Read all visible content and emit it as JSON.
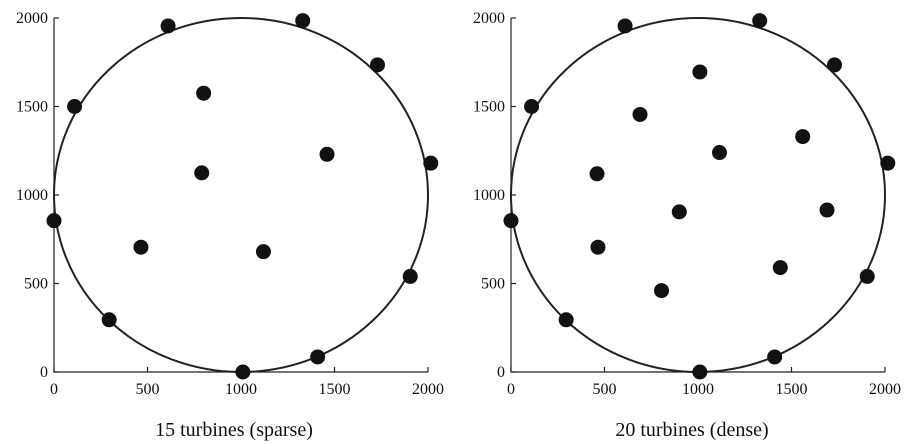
{
  "chart_data": [
    {
      "type": "scatter",
      "caption": "15 turbines (sparse)",
      "xlim": [
        0,
        2000
      ],
      "ylim": [
        0,
        2000
      ],
      "xticks": [
        0,
        500,
        1000,
        1500,
        2000
      ],
      "yticks": [
        0,
        500,
        1000,
        1500,
        2000
      ],
      "grid": false,
      "boundary": {
        "shape": "circle",
        "center": [
          1000,
          1000
        ],
        "radius": 1000
      },
      "points": [
        {
          "x": 610,
          "y": 1955
        },
        {
          "x": 1330,
          "y": 1985
        },
        {
          "x": 1730,
          "y": 1735
        },
        {
          "x": 110,
          "y": 1500
        },
        {
          "x": 2015,
          "y": 1180
        },
        {
          "x": 0,
          "y": 855
        },
        {
          "x": 1905,
          "y": 540
        },
        {
          "x": 295,
          "y": 295
        },
        {
          "x": 1410,
          "y": 85
        },
        {
          "x": 1010,
          "y": 0
        },
        {
          "x": 800,
          "y": 1575
        },
        {
          "x": 1460,
          "y": 1230
        },
        {
          "x": 790,
          "y": 1125
        },
        {
          "x": 465,
          "y": 705
        },
        {
          "x": 1120,
          "y": 680
        }
      ]
    },
    {
      "type": "scatter",
      "caption": "20 turbines (dense)",
      "xlim": [
        0,
        2000
      ],
      "ylim": [
        0,
        2000
      ],
      "xticks": [
        0,
        500,
        1000,
        1500,
        2000
      ],
      "yticks": [
        0,
        500,
        1000,
        1500,
        2000
      ],
      "grid": false,
      "boundary": {
        "shape": "circle",
        "center": [
          1000,
          1000
        ],
        "radius": 1000
      },
      "points": [
        {
          "x": 610,
          "y": 1955
        },
        {
          "x": 1330,
          "y": 1985
        },
        {
          "x": 1730,
          "y": 1735
        },
        {
          "x": 110,
          "y": 1500
        },
        {
          "x": 2015,
          "y": 1180
        },
        {
          "x": 0,
          "y": 855
        },
        {
          "x": 1905,
          "y": 540
        },
        {
          "x": 295,
          "y": 295
        },
        {
          "x": 1410,
          "y": 85
        },
        {
          "x": 1010,
          "y": 0
        },
        {
          "x": 1010,
          "y": 1695
        },
        {
          "x": 690,
          "y": 1455
        },
        {
          "x": 1560,
          "y": 1330
        },
        {
          "x": 1115,
          "y": 1240
        },
        {
          "x": 460,
          "y": 1120
        },
        {
          "x": 900,
          "y": 905
        },
        {
          "x": 1690,
          "y": 915
        },
        {
          "x": 465,
          "y": 705
        },
        {
          "x": 1440,
          "y": 590
        },
        {
          "x": 805,
          "y": 460
        }
      ]
    }
  ]
}
